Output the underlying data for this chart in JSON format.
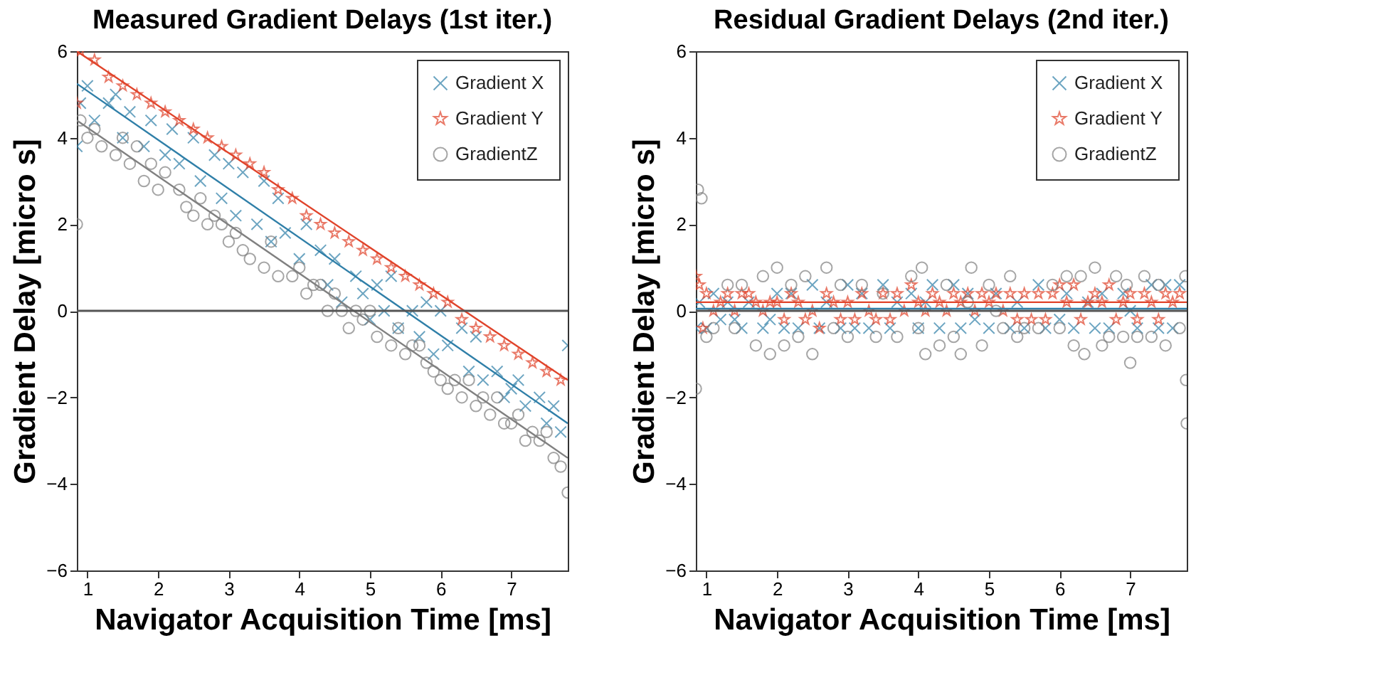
{
  "chart_data": [
    {
      "type": "scatter",
      "title": "Measured Gradient Delays (1st iter.)",
      "xlabel": "Navigator Acquisition Time [ms]",
      "ylabel": "Gradient Delay [micro s]",
      "xlim": [
        0.85,
        7.8
      ],
      "ylim": [
        -6,
        6
      ],
      "xticks": [
        1,
        2,
        3,
        4,
        5,
        6,
        7
      ],
      "yticks": [
        -6,
        -4,
        -2,
        0,
        2,
        4,
        6
      ],
      "grid": false,
      "legend": "top right",
      "ref_lines": [
        {
          "axis": "y",
          "value": 0,
          "color": "#555555"
        }
      ],
      "series": [
        {
          "name": "Gradient X",
          "color": "#2f7fa8",
          "marker": "cross",
          "x": [
            0.85,
            0.9,
            1.0,
            1.1,
            1.3,
            1.4,
            1.5,
            1.6,
            1.8,
            1.9,
            2.1,
            2.2,
            2.3,
            2.5,
            2.6,
            2.8,
            2.9,
            3.0,
            3.1,
            3.2,
            3.4,
            3.5,
            3.6,
            3.7,
            3.8,
            4.0,
            4.1,
            4.3,
            4.4,
            4.5,
            4.6,
            4.8,
            4.9,
            5.0,
            5.1,
            5.2,
            5.3,
            5.4,
            5.6,
            5.7,
            5.8,
            5.9,
            6.0,
            6.1,
            6.3,
            6.4,
            6.5,
            6.6,
            6.8,
            6.9,
            7.0,
            7.1,
            7.2,
            7.4,
            7.5,
            7.6,
            7.7,
            7.8
          ],
          "values": [
            3.8,
            4.8,
            5.2,
            4.4,
            4.8,
            5.0,
            4.0,
            4.6,
            3.8,
            4.4,
            3.6,
            4.2,
            3.4,
            4.0,
            3.0,
            3.6,
            2.6,
            3.4,
            2.2,
            3.2,
            2.0,
            3.0,
            1.6,
            2.6,
            1.8,
            1.2,
            2.0,
            1.4,
            0.6,
            1.2,
            0.2,
            0.8,
            0.4,
            -0.2,
            0.6,
            0.0,
            0.8,
            -0.4,
            0.0,
            -0.6,
            0.2,
            -1.0,
            0.0,
            -0.8,
            -0.4,
            -1.4,
            -0.6,
            -1.6,
            -1.4,
            -2.0,
            -1.8,
            -1.6,
            -2.2,
            -2.0,
            -2.6,
            -2.2,
            -2.8,
            -0.8
          ]
        },
        {
          "name": "Gradient Y",
          "color": "#e0432a",
          "marker": "star",
          "x": [
            0.85,
            0.9,
            1.1,
            1.3,
            1.5,
            1.7,
            1.9,
            2.1,
            2.3,
            2.5,
            2.7,
            2.9,
            3.1,
            3.3,
            3.5,
            3.7,
            3.9,
            4.1,
            4.3,
            4.5,
            4.7,
            4.9,
            5.1,
            5.3,
            5.5,
            5.7,
            5.9,
            6.1,
            6.3,
            6.5,
            6.7,
            6.9,
            7.1,
            7.3,
            7.5,
            7.7
          ],
          "values": [
            4.8,
            6.0,
            5.8,
            5.4,
            5.2,
            5.0,
            4.8,
            4.6,
            4.4,
            4.2,
            4.0,
            3.8,
            3.6,
            3.4,
            3.2,
            2.8,
            2.6,
            2.2,
            2.0,
            1.8,
            1.6,
            1.4,
            1.2,
            1.0,
            0.8,
            0.6,
            0.4,
            0.2,
            -0.2,
            -0.4,
            -0.6,
            -0.8,
            -1.0,
            -1.2,
            -1.4,
            -1.6
          ]
        },
        {
          "name": "GradientZ",
          "color": "#808080",
          "marker": "circle",
          "x": [
            0.85,
            0.9,
            1.0,
            1.1,
            1.2,
            1.4,
            1.5,
            1.6,
            1.7,
            1.8,
            1.9,
            2.0,
            2.1,
            2.3,
            2.4,
            2.5,
            2.6,
            2.7,
            2.8,
            2.9,
            3.0,
            3.1,
            3.2,
            3.3,
            3.5,
            3.6,
            3.7,
            3.9,
            4.0,
            4.1,
            4.2,
            4.3,
            4.4,
            4.5,
            4.6,
            4.7,
            4.8,
            4.9,
            5.0,
            5.1,
            5.3,
            5.4,
            5.5,
            5.6,
            5.7,
            5.8,
            5.9,
            6.0,
            6.1,
            6.2,
            6.3,
            6.4,
            6.5,
            6.6,
            6.7,
            6.8,
            6.9,
            7.0,
            7.1,
            7.2,
            7.3,
            7.4,
            7.5,
            7.6,
            7.7,
            7.8
          ],
          "values": [
            2.0,
            4.4,
            4.0,
            4.2,
            3.8,
            3.6,
            4.0,
            3.4,
            3.8,
            3.0,
            3.4,
            2.8,
            3.2,
            2.8,
            2.4,
            2.2,
            2.6,
            2.0,
            2.2,
            2.0,
            1.6,
            1.8,
            1.4,
            1.2,
            1.0,
            1.6,
            0.8,
            0.8,
            1.0,
            0.4,
            0.6,
            0.6,
            0.0,
            0.4,
            0.0,
            -0.4,
            0.0,
            -0.2,
            0.0,
            -0.6,
            -0.8,
            -0.4,
            -1.0,
            -0.8,
            -0.8,
            -1.2,
            -1.4,
            -1.6,
            -1.8,
            -1.6,
            -2.0,
            -1.6,
            -2.2,
            -2.0,
            -2.4,
            -2.0,
            -2.6,
            -2.6,
            -2.4,
            -3.0,
            -2.8,
            -3.0,
            -2.8,
            -3.4,
            -3.6,
            -4.2
          ]
        },
        {
          "type": "line",
          "color": "#e0432a",
          "x": [
            0.85,
            7.8
          ],
          "values": [
            6.0,
            -1.6
          ]
        },
        {
          "type": "line",
          "color": "#2f7fa8",
          "x": [
            0.85,
            7.8
          ],
          "values": [
            5.25,
            -2.6
          ]
        },
        {
          "type": "line",
          "color": "#808080",
          "x": [
            0.85,
            7.8
          ],
          "values": [
            4.4,
            -3.4
          ]
        }
      ]
    },
    {
      "type": "scatter",
      "title": "Residual Gradient Delays (2nd iter.)",
      "xlabel": "Navigator Acquisition Time [ms]",
      "ylabel": "Gradient Delay [micro s]",
      "xlim": [
        0.85,
        7.8
      ],
      "ylim": [
        -6,
        6
      ],
      "xticks": [
        1,
        2,
        3,
        4,
        5,
        6,
        7
      ],
      "yticks": [
        -6,
        -4,
        -2,
        0,
        2,
        4,
        6
      ],
      "grid": false,
      "legend": "top right",
      "ref_lines": [
        {
          "axis": "y",
          "value": 0,
          "color": "#555555"
        }
      ],
      "series": [
        {
          "name": "Gradient X",
          "color": "#2f7fa8",
          "marker": "cross",
          "x": [
            0.85,
            0.9,
            1.0,
            1.1,
            1.2,
            1.3,
            1.4,
            1.5,
            1.6,
            1.8,
            1.9,
            2.0,
            2.1,
            2.2,
            2.3,
            2.5,
            2.6,
            2.7,
            2.9,
            3.0,
            3.1,
            3.2,
            3.3,
            3.5,
            3.6,
            3.7,
            3.9,
            4.0,
            4.1,
            4.2,
            4.3,
            4.5,
            4.6,
            4.7,
            4.8,
            5.0,
            5.1,
            5.3,
            5.4,
            5.5,
            5.7,
            5.8,
            6.0,
            6.1,
            6.2,
            6.4,
            6.5,
            6.6,
            6.7,
            6.9,
            7.0,
            7.1,
            7.3,
            7.4,
            7.5,
            7.6,
            7.7
          ],
          "values": [
            -0.4,
            0.2,
            -0.4,
            0.4,
            -0.2,
            0.2,
            -0.2,
            -0.4,
            0.2,
            -0.4,
            -0.2,
            0.4,
            -0.4,
            0.4,
            -0.4,
            0.6,
            -0.4,
            0.2,
            -0.4,
            0.6,
            -0.4,
            0.4,
            -0.4,
            0.6,
            -0.4,
            0.2,
            0.4,
            -0.4,
            0.2,
            0.6,
            -0.4,
            0.6,
            -0.4,
            0.4,
            -0.2,
            -0.4,
            0.4,
            -0.4,
            0.2,
            -0.4,
            0.6,
            -0.4,
            -0.2,
            0.4,
            -0.4,
            0.2,
            -0.4,
            0.4,
            -0.4,
            0.4,
            0.0,
            -0.4,
            0.6,
            -0.4,
            0.6,
            -0.4,
            0.6
          ]
        },
        {
          "name": "Gradient Y",
          "color": "#e0432a",
          "marker": "star",
          "x": [
            0.85,
            0.9,
            0.95,
            1.0,
            1.1,
            1.2,
            1.3,
            1.4,
            1.5,
            1.6,
            1.7,
            1.8,
            1.9,
            2.0,
            2.1,
            2.2,
            2.3,
            2.4,
            2.5,
            2.6,
            2.7,
            2.8,
            2.9,
            3.0,
            3.1,
            3.2,
            3.3,
            3.4,
            3.5,
            3.6,
            3.7,
            3.8,
            3.9,
            4.0,
            4.1,
            4.2,
            4.3,
            4.4,
            4.5,
            4.6,
            4.7,
            4.8,
            4.9,
            5.0,
            5.1,
            5.2,
            5.3,
            5.4,
            5.5,
            5.6,
            5.7,
            5.8,
            5.9,
            6.0,
            6.1,
            6.2,
            6.3,
            6.4,
            6.5,
            6.6,
            6.7,
            6.8,
            6.9,
            7.0,
            7.1,
            7.2,
            7.3,
            7.4,
            7.5,
            7.6,
            7.7
          ],
          "values": [
            0.8,
            0.6,
            -0.4,
            0.4,
            0.0,
            0.2,
            0.4,
            0.0,
            0.4,
            0.4,
            0.2,
            0.0,
            0.2,
            0.2,
            -0.2,
            0.4,
            0.2,
            -0.2,
            0.0,
            -0.4,
            0.4,
            0.2,
            -0.2,
            0.2,
            -0.2,
            0.4,
            0.0,
            -0.2,
            0.4,
            -0.2,
            0.4,
            0.0,
            0.6,
            0.2,
            0.0,
            0.4,
            0.2,
            0.0,
            0.4,
            0.2,
            0.4,
            0.0,
            0.4,
            0.2,
            0.4,
            0.0,
            0.4,
            -0.2,
            0.4,
            -0.2,
            0.4,
            -0.2,
            0.4,
            0.6,
            0.2,
            0.6,
            -0.2,
            0.2,
            0.4,
            0.2,
            0.6,
            -0.2,
            0.2,
            0.4,
            -0.2,
            0.4,
            0.2,
            -0.2,
            0.4,
            0.2,
            0.4
          ]
        },
        {
          "name": "GradientZ",
          "color": "#808080",
          "marker": "circle",
          "x": [
            0.85,
            0.88,
            0.93,
            1.0,
            1.1,
            1.3,
            1.4,
            1.5,
            1.7,
            1.8,
            1.9,
            2.0,
            2.1,
            2.2,
            2.3,
            2.4,
            2.5,
            2.7,
            2.8,
            2.9,
            3.0,
            3.2,
            3.4,
            3.5,
            3.7,
            3.9,
            4.0,
            4.05,
            4.1,
            4.3,
            4.4,
            4.5,
            4.6,
            4.7,
            4.75,
            4.9,
            5.0,
            5.1,
            5.2,
            5.3,
            5.4,
            5.5,
            5.7,
            5.9,
            6.0,
            6.1,
            6.2,
            6.3,
            6.35,
            6.5,
            6.6,
            6.7,
            6.8,
            6.9,
            6.95,
            7.0,
            7.1,
            7.2,
            7.3,
            7.4,
            7.5,
            7.7,
            7.78,
            7.79,
            7.8
          ],
          "values": [
            -1.8,
            2.8,
            2.6,
            -0.6,
            -0.4,
            0.6,
            -0.4,
            0.6,
            -0.8,
            0.8,
            -1.0,
            1.0,
            -0.8,
            0.6,
            -0.6,
            0.8,
            -1.0,
            1.0,
            -0.4,
            0.6,
            -0.6,
            0.6,
            -0.6,
            0.4,
            -0.6,
            0.8,
            -0.4,
            1.0,
            -1.0,
            -0.8,
            0.6,
            -0.6,
            -1.0,
            0.2,
            1.0,
            -0.8,
            0.6,
            0.0,
            -0.4,
            0.8,
            -0.6,
            -0.4,
            -0.4,
            0.6,
            -0.4,
            0.8,
            -0.8,
            0.8,
            -1.0,
            1.0,
            -0.8,
            -0.6,
            0.8,
            -0.6,
            0.6,
            -1.2,
            -0.6,
            0.8,
            -0.6,
            0.6,
            -0.8,
            -0.4,
            0.8,
            -1.6,
            -2.6
          ]
        },
        {
          "type": "line",
          "color": "#e0432a",
          "x": [
            0.85,
            7.8
          ],
          "values": [
            0.2,
            0.2
          ]
        },
        {
          "type": "line",
          "color": "#2f7fa8",
          "x": [
            0.85,
            7.8
          ],
          "values": [
            0.05,
            0.05
          ]
        }
      ]
    }
  ]
}
